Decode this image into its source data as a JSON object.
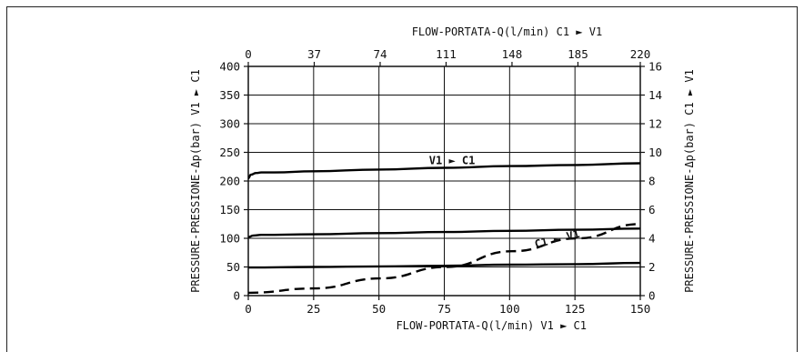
{
  "chart_data": {
    "type": "line",
    "x_bottom": {
      "label": "FLOW-PORTATA-Q(l/min) V1 ► C1",
      "range": [
        0,
        150
      ],
      "ticks": [
        "0",
        "25",
        "50",
        "75",
        "100",
        "125",
        "150"
      ]
    },
    "x_top": {
      "label": "FLOW-PORTATA-Q(l/min) C1 ► V1",
      "range": [
        0,
        220
      ],
      "ticks": [
        "0",
        "37",
        "74",
        "111",
        "148",
        "185",
        "220"
      ]
    },
    "y_left": {
      "label": "PRESSURE-PRESSIONE-Δp(bar) V1 ► C1",
      "range": [
        0,
        400
      ],
      "ticks": [
        "0",
        "50",
        "100",
        "150",
        "200",
        "250",
        "300",
        "350",
        "400"
      ]
    },
    "y_right": {
      "label": "PRESSURE-PRESSIONE-Δp(bar) C1 ► V1",
      "range": [
        0,
        16
      ],
      "ticks": [
        "0",
        "2",
        "4",
        "6",
        "8",
        "10",
        "12",
        "14",
        "16"
      ]
    },
    "grid": true,
    "series": [
      {
        "name": "V1 ► C1",
        "axis": "bottom-left",
        "style": "solid",
        "x": [
          0,
          1,
          3,
          5,
          10,
          25,
          50,
          75,
          100,
          125,
          150
        ],
        "y": [
          205,
          211,
          214,
          215,
          215,
          217,
          220,
          223,
          226,
          228,
          231
        ]
      },
      {
        "name": "",
        "axis": "bottom-left",
        "style": "solid",
        "x": [
          0,
          2,
          5,
          25,
          50,
          75,
          100,
          125,
          150
        ],
        "y": [
          102,
          105,
          106,
          107,
          109,
          111,
          113,
          115,
          117
        ]
      },
      {
        "name": "",
        "axis": "bottom-left",
        "style": "solid",
        "x": [
          0,
          25,
          50,
          75,
          100,
          125,
          150
        ],
        "y": [
          49,
          50,
          51,
          52,
          54,
          55,
          57
        ]
      },
      {
        "name": "C1 ► V1",
        "axis": "top-right",
        "style": "dashed",
        "x": [
          0,
          37,
          74,
          111,
          148,
          185,
          220
        ],
        "y": [
          0.2,
          0.5,
          1.2,
          2.0,
          3.1,
          4.0,
          5.0
        ]
      }
    ],
    "annotations": [
      {
        "text": "V1 ► C1",
        "series": 0
      },
      {
        "text": "C1 ► V1",
        "series": 3
      }
    ]
  }
}
